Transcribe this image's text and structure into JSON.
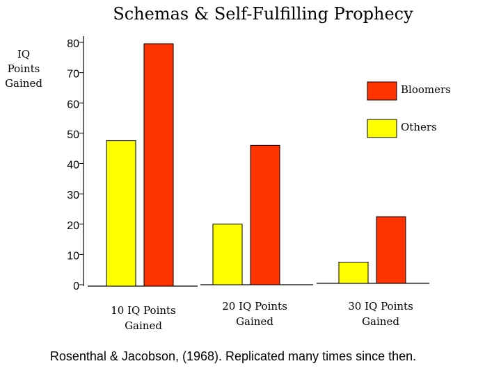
{
  "chart_data": {
    "type": "bar",
    "title": "Schemas & Self-Fulfilling Prophecy",
    "ylabel": "IQ Points Gained",
    "ylabel_lines": [
      "IQ",
      "Points",
      "Gained"
    ],
    "xlabel": "",
    "ylim": [
      0,
      80
    ],
    "yticks": [
      0,
      10,
      20,
      30,
      40,
      50,
      60,
      70,
      80
    ],
    "categories": [
      [
        "10 IQ Points",
        "Gained"
      ],
      [
        "20 IQ Points",
        "Gained"
      ],
      [
        "30 IQ Points",
        "Gained"
      ]
    ],
    "series": [
      {
        "name": "Others",
        "color": "#ffff00",
        "values": [
          48,
          20,
          7
        ]
      },
      {
        "name": "Bloomers",
        "color": "#ff3300",
        "values": [
          80,
          46,
          22
        ]
      }
    ],
    "legend": [
      {
        "label": "Bloomers",
        "color": "#ff3300"
      },
      {
        "label": "Others",
        "color": "#ffff00"
      }
    ],
    "legend_position": "top-right",
    "grid": false
  },
  "footer": "Rosenthal & Jacobson, (1968).  Replicated many times since then."
}
